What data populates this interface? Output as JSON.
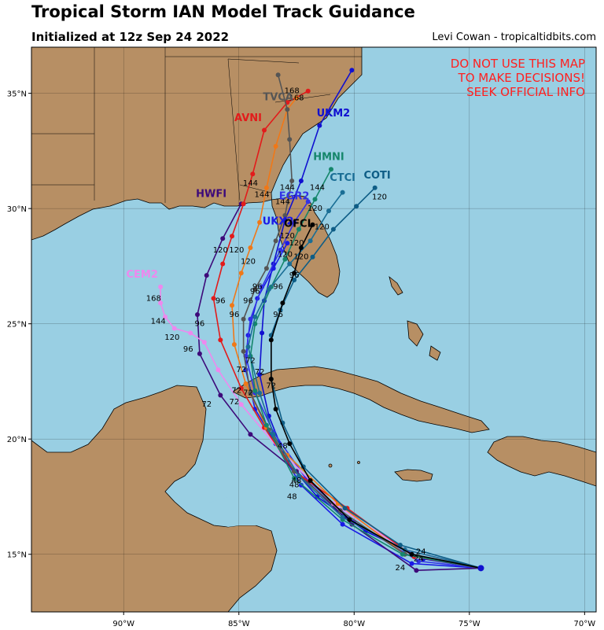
{
  "header": {
    "title": "Tropical Storm IAN Model Track Guidance",
    "subtitle": "Initialized at 12z Sep 24 2022",
    "credit": "Levi Cowan - tropicaltidbits.com"
  },
  "warning": [
    "DO NOT USE THIS MAP",
    "TO MAKE DECISIONS!",
    "SEEK OFFICIAL INFO"
  ],
  "colors": {
    "water": "#99cfe3",
    "land": "#b78f64",
    "warning": "#ff2020"
  },
  "chart_data": {
    "type": "map",
    "lon_ticks": [
      {
        "value": -90,
        "label": "90°W"
      },
      {
        "value": -85,
        "label": "85°W"
      },
      {
        "value": -80,
        "label": "80°W"
      },
      {
        "value": -75,
        "label": "75°W"
      },
      {
        "value": -70,
        "label": "70°W"
      }
    ],
    "lat_ticks": [
      {
        "value": 15,
        "label": "15°N"
      },
      {
        "value": 20,
        "label": "20°N"
      },
      {
        "value": 25,
        "label": "25°N"
      },
      {
        "value": 30,
        "label": "30°N"
      },
      {
        "value": 35,
        "label": "35°N"
      }
    ],
    "lon_range": [
      -94.0,
      -69.5
    ],
    "lat_range": [
      12.5,
      37.0
    ],
    "start": {
      "lon": -74.5,
      "lat": 14.4
    },
    "tracks": [
      {
        "name": "UKM2",
        "color": "#1010d0",
        "points": [
          [
            -74.5,
            14.4
          ],
          [
            -77,
            14.8
          ],
          [
            -79.5,
            16
          ],
          [
            -81.6,
            17.5
          ],
          [
            -82.9,
            19
          ],
          [
            -83.7,
            21
          ],
          [
            -84.1,
            22.8
          ],
          [
            -84.0,
            24.6
          ],
          [
            -83.9,
            26.0
          ],
          [
            -83.5,
            27.6
          ],
          [
            -83.0,
            29.5
          ],
          [
            -82.3,
            31.2
          ],
          [
            -81.5,
            33.6
          ],
          [
            -80.1,
            36.0
          ]
        ],
        "label": {
          "text": "UKM2",
          "lon": -80.9,
          "lat": 34.0
        }
      },
      {
        "name": "UKX2",
        "color": "#1a1ae6",
        "points": [
          [
            -74.5,
            14.4
          ],
          [
            -77.5,
            14.6
          ],
          [
            -80.5,
            16.3
          ],
          [
            -82.3,
            18
          ],
          [
            -83.4,
            19.8
          ],
          [
            -84.3,
            21.3
          ],
          [
            -84.7,
            23
          ],
          [
            -84.6,
            24.5
          ],
          [
            -84.2,
            26.1
          ],
          [
            -83.5,
            27.4
          ],
          [
            -82.9,
            28.5
          ]
        ],
        "label": {
          "text": "UKX2",
          "lon": -83.3,
          "lat": 29.3
        }
      },
      {
        "name": "EGR2",
        "color": "#3232e6",
        "points": [
          [
            -74.5,
            14.4
          ],
          [
            -77.2,
            14.7
          ],
          [
            -80,
            16.4
          ],
          [
            -82.1,
            18.3
          ],
          [
            -83.5,
            20.3
          ],
          [
            -84.3,
            22
          ],
          [
            -84.7,
            23.6
          ],
          [
            -84.5,
            25.2
          ],
          [
            -84.0,
            26.6
          ],
          [
            -83.2,
            28.2
          ],
          [
            -82.6,
            29.4
          ],
          [
            -82.0,
            30.3
          ]
        ],
        "label": {
          "text": "EGR2",
          "lon": -82.6,
          "lat": 30.4
        }
      },
      {
        "name": "HWFI",
        "color": "#3d0a7a",
        "points": [
          [
            -74.5,
            14.4
          ],
          [
            -77.3,
            14.3
          ],
          [
            -80.1,
            16.3
          ],
          [
            -82.5,
            18.6
          ],
          [
            -84.5,
            20.2
          ],
          [
            -85.8,
            21.9
          ],
          [
            -86.7,
            23.7
          ],
          [
            -86.8,
            25.4
          ],
          [
            -86.4,
            27.1
          ],
          [
            -85.7,
            28.7
          ],
          [
            -84.9,
            30.2
          ]
        ],
        "label": {
          "text": "HWFI",
          "lon": -86.2,
          "lat": 30.5
        }
      },
      {
        "name": "CEM2",
        "color": "#ee88ee",
        "points": [
          [
            -74.5,
            14.4
          ],
          [
            -77.8,
            15.2
          ],
          [
            -80.9,
            17.2
          ],
          [
            -83.2,
            19.5
          ],
          [
            -84.9,
            21.5
          ],
          [
            -85.9,
            23.0
          ],
          [
            -86.5,
            24.2
          ],
          [
            -87.1,
            24.6
          ],
          [
            -87.8,
            24.8
          ],
          [
            -88.2,
            25.3
          ],
          [
            -88.4,
            25.9
          ],
          [
            -88.4,
            26.6
          ]
        ],
        "label": {
          "text": "CEM2",
          "lon": -89.2,
          "lat": 27.0
        }
      },
      {
        "name": "AVNI",
        "color": "#e21b1b",
        "points": [
          [
            -74.5,
            14.4
          ],
          [
            -77.4,
            14.9
          ],
          [
            -80.3,
            17.0
          ],
          [
            -82.6,
            18.6
          ],
          [
            -83.9,
            20.5
          ],
          [
            -84.9,
            22.2
          ],
          [
            -85.8,
            24.3
          ],
          [
            -86.1,
            26.1
          ],
          [
            -85.7,
            27.6
          ],
          [
            -85.3,
            28.8
          ],
          [
            -84.8,
            30.2
          ],
          [
            -84.4,
            31.5
          ],
          [
            -83.9,
            33.4
          ],
          [
            -82.9,
            34.6
          ],
          [
            -82.0,
            35.1
          ]
        ],
        "label": {
          "text": "AVNI",
          "lon": -84.6,
          "lat": 33.8
        }
      },
      {
        "name": "AVNI-orange",
        "color": "#f07818",
        "points": [
          [
            -74.5,
            14.4
          ],
          [
            -77.8,
            15.0
          ],
          [
            -80.7,
            17.2
          ],
          [
            -82.9,
            19.3
          ],
          [
            -83.8,
            20.5
          ],
          [
            -84.7,
            22.4
          ],
          [
            -85.2,
            24.1
          ],
          [
            -85.3,
            25.8
          ],
          [
            -84.9,
            27.2
          ],
          [
            -84.5,
            28.3
          ],
          [
            -84.1,
            29.4
          ],
          [
            -83.8,
            30.9
          ],
          [
            -83.4,
            32.7
          ],
          [
            -82.9,
            34.3
          ],
          [
            -82.5,
            34.8
          ]
        ],
        "label": null
      },
      {
        "name": "TVCA",
        "color": "#555555",
        "points": [
          [
            -74.5,
            14.4
          ],
          [
            -77.8,
            15.0
          ],
          [
            -80.6,
            16.9
          ],
          [
            -82.6,
            18.6
          ],
          [
            -83.7,
            20.4
          ],
          [
            -84.5,
            22.0
          ],
          [
            -84.8,
            23.8
          ],
          [
            -84.8,
            25.2
          ],
          [
            -84.3,
            26.5
          ],
          [
            -83.8,
            27.4
          ],
          [
            -83.4,
            28.6
          ],
          [
            -83.0,
            29.7
          ],
          [
            -82.7,
            31.2
          ],
          [
            -82.8,
            33.0
          ],
          [
            -82.9,
            34.3
          ],
          [
            -83.3,
            35.8
          ]
        ],
        "label": {
          "text": "TVCA",
          "lon": -83.3,
          "lat": 34.7
        }
      },
      {
        "name": "HMNI",
        "color": "#15866b",
        "points": [
          [
            -74.5,
            14.4
          ],
          [
            -77.9,
            15.0
          ],
          [
            -80.5,
            16.5
          ],
          [
            -82.6,
            18.3
          ],
          [
            -83.8,
            20.6
          ],
          [
            -84.3,
            22.1
          ],
          [
            -84.5,
            23.6
          ],
          [
            -84.3,
            25.0
          ],
          [
            -83.6,
            26.6
          ],
          [
            -83.0,
            27.8
          ],
          [
            -82.4,
            29.1
          ],
          [
            -81.7,
            30.4
          ],
          [
            -81.0,
            31.7
          ]
        ],
        "label": {
          "text": "HMNI",
          "lon": -81.1,
          "lat": 32.1
        }
      },
      {
        "name": "CTCI",
        "color": "#1a6e95",
        "points": [
          [
            -74.5,
            14.4
          ],
          [
            -77.8,
            15.2
          ],
          [
            -80.5,
            16.6
          ],
          [
            -82.4,
            18.4
          ],
          [
            -83.5,
            20.2
          ],
          [
            -84.1,
            22.0
          ],
          [
            -84.6,
            24.0
          ],
          [
            -84.3,
            25.3
          ],
          [
            -83.7,
            26.5
          ],
          [
            -82.8,
            27.6
          ],
          [
            -81.9,
            28.6
          ],
          [
            -81.1,
            29.9
          ],
          [
            -80.5,
            30.7
          ]
        ],
        "label": {
          "text": "CTCI",
          "lon": -80.5,
          "lat": 31.2
        }
      },
      {
        "name": "COTI",
        "color": "#0e5d86",
        "points": [
          [
            -74.5,
            14.4
          ],
          [
            -78.0,
            15.4
          ],
          [
            -80.4,
            17.0
          ],
          [
            -82.2,
            18.8
          ],
          [
            -83.1,
            20.7
          ],
          [
            -83.6,
            22.6
          ],
          [
            -83.6,
            24.5
          ],
          [
            -83.2,
            25.6
          ],
          [
            -82.6,
            26.9
          ],
          [
            -81.8,
            27.9
          ],
          [
            -80.9,
            29.1
          ],
          [
            -79.9,
            30.1
          ],
          [
            -79.1,
            30.9
          ]
        ],
        "label": {
          "text": "COTI",
          "lon": -79.0,
          "lat": 31.3
        }
      },
      {
        "name": "OFCL",
        "color": "#000000",
        "points": [
          [
            -74.5,
            14.4
          ],
          [
            -77.5,
            15.0
          ],
          [
            -80.2,
            16.5
          ],
          [
            -81.9,
            18.2
          ],
          [
            -82.8,
            19.8
          ],
          [
            -83.4,
            21.3
          ],
          [
            -83.6,
            22.6
          ],
          [
            -83.6,
            24.3
          ],
          [
            -83.1,
            25.9
          ],
          [
            -82.6,
            27.2
          ],
          [
            -82.3,
            28.3
          ],
          [
            -81.8,
            29.3
          ]
        ],
        "label": {
          "text": "OFCL",
          "lon": -82.4,
          "lat": 29.2
        }
      }
    ],
    "hour_labels": [
      {
        "text": "24",
        "lon": -78.0,
        "lat": 14.3
      },
      {
        "text": "24",
        "lon": -77.1,
        "lat": 15.0
      },
      {
        "text": "24",
        "lon": -77.2,
        "lat": 14.7
      },
      {
        "text": "48",
        "lon": -82.7,
        "lat": 17.4
      },
      {
        "text": "48",
        "lon": -82.6,
        "lat": 17.9
      },
      {
        "text": "48",
        "lon": -82.5,
        "lat": 18.1
      },
      {
        "text": "48",
        "lon": -83.1,
        "lat": 19.6
      },
      {
        "text": "72",
        "lon": -86.4,
        "lat": 21.4
      },
      {
        "text": "72",
        "lon": -85.2,
        "lat": 21.5
      },
      {
        "text": "72",
        "lon": -84.6,
        "lat": 21.9
      },
      {
        "text": "72",
        "lon": -85.1,
        "lat": 22.0
      },
      {
        "text": "72",
        "lon": -84.9,
        "lat": 22.9
      },
      {
        "text": "72",
        "lon": -84.5,
        "lat": 23.3
      },
      {
        "text": "72",
        "lon": -84.1,
        "lat": 22.8
      },
      {
        "text": "72",
        "lon": -83.6,
        "lat": 22.2
      },
      {
        "text": "96",
        "lon": -87.2,
        "lat": 23.8
      },
      {
        "text": "96",
        "lon": -86.7,
        "lat": 24.9
      },
      {
        "text": "96",
        "lon": -85.8,
        "lat": 25.9
      },
      {
        "text": "96",
        "lon": -85.2,
        "lat": 25.3
      },
      {
        "text": "96",
        "lon": -84.6,
        "lat": 25.9
      },
      {
        "text": "96",
        "lon": -84.3,
        "lat": 26.3
      },
      {
        "text": "96",
        "lon": -83.3,
        "lat": 25.3
      },
      {
        "text": "96",
        "lon": -83.3,
        "lat": 26.5
      },
      {
        "text": "96",
        "lon": -84.2,
        "lat": 26.5
      },
      {
        "text": "96",
        "lon": -82.6,
        "lat": 27.0
      },
      {
        "text": "120",
        "lon": -87.9,
        "lat": 24.3
      },
      {
        "text": "120",
        "lon": -85.8,
        "lat": 28.1
      },
      {
        "text": "120",
        "lon": -85.1,
        "lat": 28.1
      },
      {
        "text": "120",
        "lon": -84.6,
        "lat": 27.6
      },
      {
        "text": "120",
        "lon": -83.0,
        "lat": 27.9
      },
      {
        "text": "120",
        "lon": -82.9,
        "lat": 28.7
      },
      {
        "text": "120",
        "lon": -82.3,
        "lat": 27.8
      },
      {
        "text": "120",
        "lon": -82.5,
        "lat": 28.4
      },
      {
        "text": "120",
        "lon": -81.7,
        "lat": 29.9
      },
      {
        "text": "120",
        "lon": -81.4,
        "lat": 29.1
      },
      {
        "text": "120",
        "lon": -78.9,
        "lat": 30.4
      },
      {
        "text": "144",
        "lon": -88.5,
        "lat": 25.0
      },
      {
        "text": "144",
        "lon": -84.5,
        "lat": 31.0
      },
      {
        "text": "144",
        "lon": -84.0,
        "lat": 30.5
      },
      {
        "text": "144",
        "lon": -82.9,
        "lat": 30.8
      },
      {
        "text": "144",
        "lon": -83.1,
        "lat": 30.2
      },
      {
        "text": "144",
        "lon": -81.6,
        "lat": 30.8
      },
      {
        "text": "168",
        "lon": -88.7,
        "lat": 26.0
      },
      {
        "text": "168",
        "lon": -82.7,
        "lat": 35.0
      },
      {
        "text": "168",
        "lon": -82.5,
        "lat": 34.7
      }
    ]
  }
}
